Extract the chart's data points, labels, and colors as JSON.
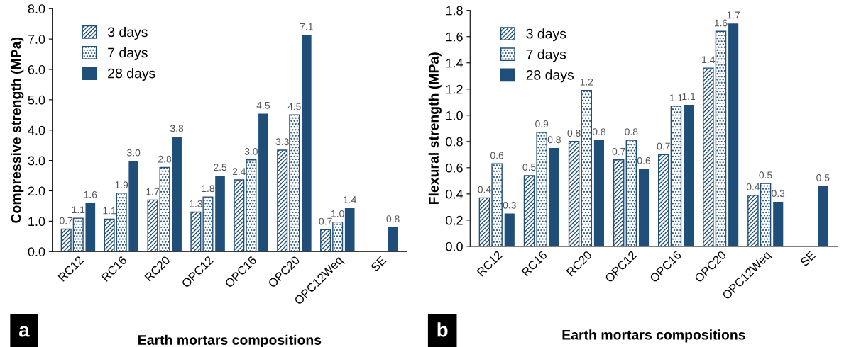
{
  "chart_data": [
    {
      "type": "bar",
      "categories": [
        "RC12",
        "RC16",
        "RC20",
        "OPC12",
        "OPC16",
        "OPC20",
        "OPC12Weq",
        "SE"
      ],
      "xlabel": "Earth mortars compositions",
      "ylabel": "Compressive strength (MPa)",
      "ylim": [
        0,
        8
      ],
      "yticks": [
        {
          "value": 0,
          "label": "0.0"
        },
        {
          "value": 1,
          "label": "1.0"
        },
        {
          "value": 2,
          "label": "2.0"
        },
        {
          "value": 3,
          "label": "3.0"
        },
        {
          "value": 4,
          "label": "4.0"
        },
        {
          "value": 5,
          "label": "5.0"
        },
        {
          "value": 6,
          "label": "6.0"
        },
        {
          "value": 7,
          "label": "7.0"
        },
        {
          "value": 8,
          "label": "8.0"
        }
      ],
      "grid": false,
      "legend": "top left",
      "annotations": [
        "a"
      ],
      "series": [
        {
          "name": "3 days",
          "color": "#1f4e79",
          "values": [
            0.74,
            1.07,
            1.7,
            1.3,
            2.36,
            3.34,
            0.72,
            null
          ],
          "value_labels": [
            "0.7",
            "1.1",
            "1.7",
            "1.3",
            "2.4",
            "3.3",
            "0.7",
            null
          ]
        },
        {
          "name": "7 days",
          "color": "#1f4e79",
          "values": [
            1.1,
            1.92,
            2.77,
            1.8,
            3.02,
            4.5,
            0.97,
            null
          ],
          "value_labels": [
            "1.1",
            "1.9",
            "2.8",
            "1.8",
            "3.0",
            "4.5",
            "1.0",
            null
          ]
        },
        {
          "name": "28 days",
          "color": "#1f4e79",
          "values": [
            1.6,
            2.98,
            3.78,
            2.5,
            4.54,
            7.13,
            1.43,
            0.8
          ],
          "value_labels": [
            "1.6",
            "3.0",
            "3.8",
            "2.5",
            "4.5",
            "7.1",
            "1.4",
            "0.8"
          ]
        }
      ]
    },
    {
      "type": "bar",
      "categories": [
        "RC12",
        "RC16",
        "RC20",
        "OPC12",
        "OPC16",
        "OPC20",
        "OPC12Weq",
        "SE"
      ],
      "xlabel": "Earth mortars compositions",
      "ylabel": "Flexural strength (MPa)",
      "ylim": [
        0,
        1.8
      ],
      "yticks": [
        {
          "value": 0,
          "label": "0.0"
        },
        {
          "value": 0.2,
          "label": "0.2"
        },
        {
          "value": 0.4,
          "label": "0.4"
        },
        {
          "value": 0.6,
          "label": "0.6"
        },
        {
          "value": 0.8,
          "label": "0.8"
        },
        {
          "value": 1.0,
          "label": "1.0"
        },
        {
          "value": 1.2,
          "label": "1.2"
        },
        {
          "value": 1.4,
          "label": "1.4"
        },
        {
          "value": 1.6,
          "label": "1.6"
        },
        {
          "value": 1.8,
          "label": "1.8"
        }
      ],
      "grid": false,
      "legend": "top left",
      "annotations": [
        "b"
      ],
      "series": [
        {
          "name": "3 days",
          "color": "#1f4e79",
          "values": [
            0.37,
            0.54,
            0.8,
            0.66,
            0.7,
            1.36,
            0.39,
            null
          ],
          "value_labels": [
            "0.4",
            "0.5",
            "0.8",
            "0.7",
            "0.7",
            "1.4",
            "0.4",
            null
          ]
        },
        {
          "name": "7 days",
          "color": "#1f4e79",
          "values": [
            0.63,
            0.87,
            1.19,
            0.81,
            1.07,
            1.64,
            0.48,
            null
          ],
          "value_labels": [
            "0.6",
            "0.9",
            "1.2",
            "0.8",
            "1.1",
            "1.6",
            "0.5",
            null
          ]
        },
        {
          "name": "28 days",
          "color": "#1f4e79",
          "values": [
            0.25,
            0.75,
            0.81,
            0.59,
            1.08,
            1.7,
            0.34,
            0.46
          ],
          "value_labels": [
            "0.3",
            "0.8",
            "0.8",
            "0.6",
            "1.1",
            "1.7",
            "0.3",
            "0.5"
          ]
        }
      ]
    }
  ]
}
